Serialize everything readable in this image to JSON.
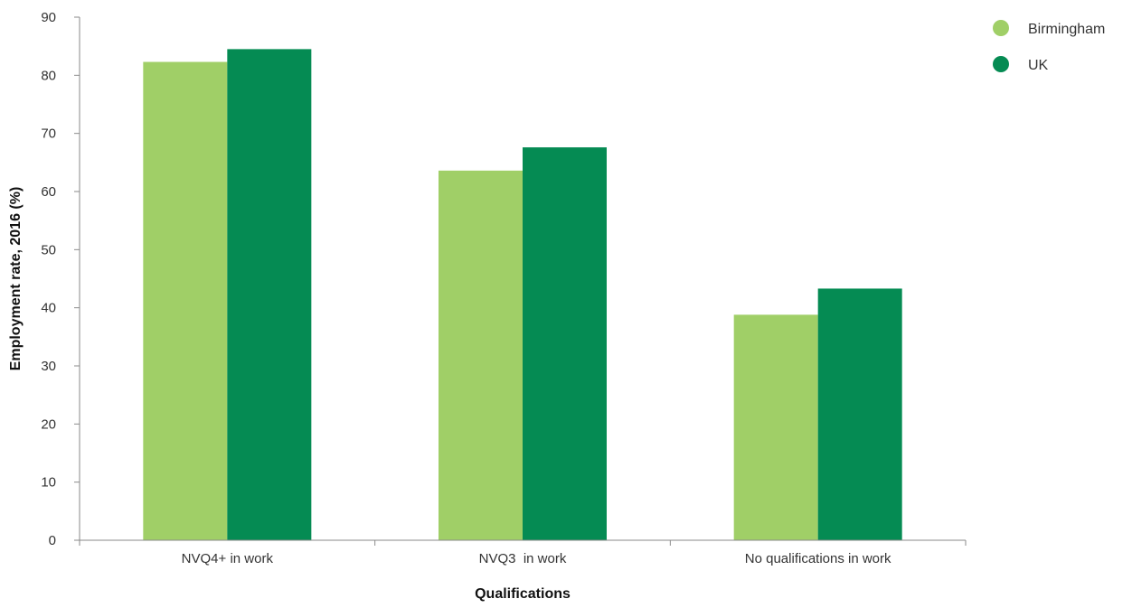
{
  "chart_data": {
    "type": "bar",
    "title": "",
    "xlabel": "Qualifications",
    "ylabel": "Employment rate, 2016 (%)",
    "ylim": [
      0,
      90
    ],
    "yticks": [
      "0",
      "10",
      "20",
      "30",
      "40",
      "50",
      "60",
      "70",
      "80",
      "90"
    ],
    "categories": [
      "NVQ4+ in work",
      "NVQ3  in work",
      "No qualifications in work"
    ],
    "series": [
      {
        "name": "Birmingham",
        "color": "#a0cf67",
        "values": [
          82.3,
          63.6,
          38.8
        ]
      },
      {
        "name": "UK",
        "color": "#058b53",
        "values": [
          84.5,
          67.6,
          43.3
        ]
      }
    ],
    "legend": {
      "placement": "top-right"
    },
    "grid": false
  }
}
